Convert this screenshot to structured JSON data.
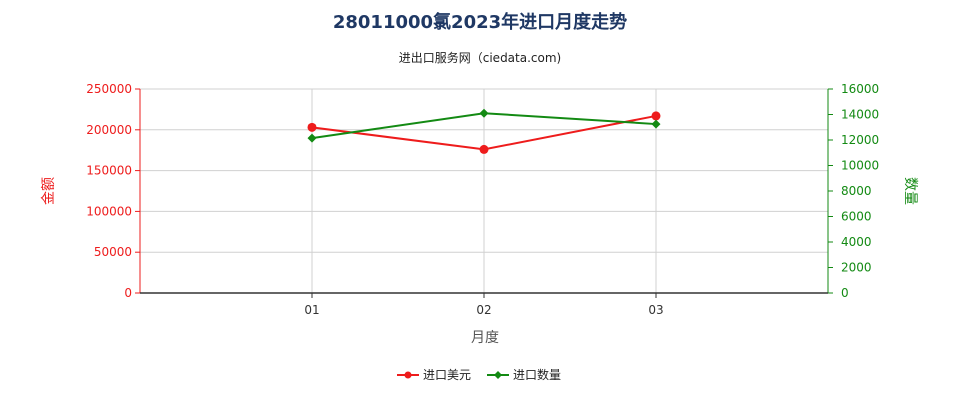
{
  "chart_data": {
    "type": "line",
    "title": "28011000氯2023年进口月度走势",
    "subtitle": "进出口服务网（ciedata.com)",
    "xlabel": "月度",
    "ylabel_left": "金额",
    "ylabel_right": "数量",
    "categories": [
      "01",
      "02",
      "03"
    ],
    "y_left_ticks": [
      0,
      50000,
      100000,
      150000,
      200000,
      250000
    ],
    "y_right_ticks": [
      0,
      2000,
      4000,
      6000,
      8000,
      10000,
      12000,
      14000,
      16000
    ],
    "ylim_left": [
      0,
      250000
    ],
    "ylim_right": [
      0,
      16000
    ],
    "grid": true,
    "legend_position": "bottom-center",
    "series": [
      {
        "name": "进口美元",
        "axis": "left",
        "color": "#ee1c1c",
        "marker": "circle",
        "values": [
          203000,
          176000,
          217000
        ]
      },
      {
        "name": "进口数量",
        "axis": "right",
        "color": "#138a13",
        "marker": "diamond",
        "values": [
          12150,
          14100,
          13250
        ]
      }
    ],
    "colors": {
      "title": "#1f3864",
      "left_axis": "#ee1c1c",
      "right_axis": "#138a13",
      "grid": "#d0d0d0",
      "axis_line": "#333333"
    }
  }
}
